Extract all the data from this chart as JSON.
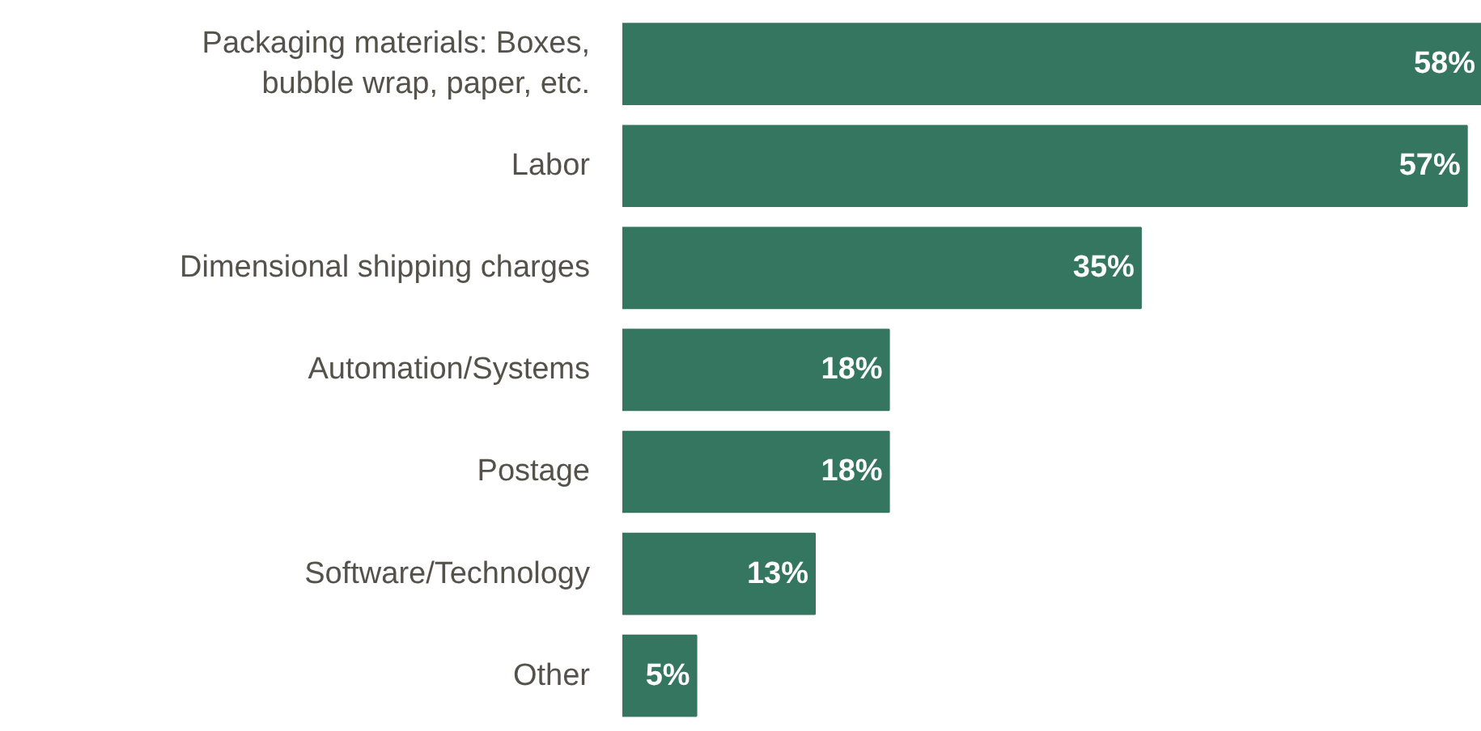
{
  "chart_data": {
    "type": "bar",
    "orientation": "horizontal",
    "categories": [
      "Packaging materials: Boxes, bubble wrap, paper, etc.",
      "Labor",
      "Dimensional shipping charges",
      "Automation/Systems",
      "Postage",
      "Software/Technology",
      "Other"
    ],
    "values": [
      58,
      57,
      35,
      18,
      18,
      13,
      5
    ],
    "value_labels": [
      "58%",
      "57%",
      "35%",
      "18%",
      "18%",
      "13%",
      "5%"
    ],
    "color": "#357660"
  }
}
